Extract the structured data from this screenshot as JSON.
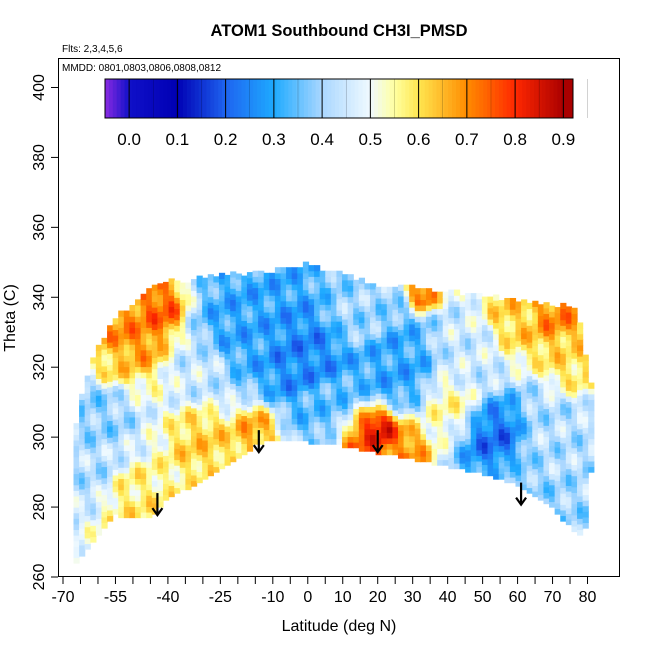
{
  "chart_data": {
    "type": "heatmap",
    "title": "ATOM1 Southbound CH3I_PMSD",
    "flights_note": "Flts: 2,3,4,5,6",
    "dates_note": "MMDD: 0801,0803,0806,0808,0812",
    "xlabel": "Latitude (deg N)",
    "ylabel": "Theta (C)",
    "xlim": [
      -70,
      85
    ],
    "ylim": [
      260,
      405
    ],
    "x_ticks_labeled": [
      -70,
      -55,
      -40,
      -25,
      -10,
      0,
      10,
      20,
      30,
      40,
      50,
      60,
      70,
      80
    ],
    "x_ticks_minor": [
      -65,
      -60,
      -50,
      -45,
      -35,
      -30,
      -20,
      -15,
      -5,
      5,
      15,
      25,
      35,
      45,
      55,
      65,
      75
    ],
    "y_ticks": [
      260,
      280,
      300,
      320,
      340,
      360,
      380,
      400
    ],
    "colorbar": {
      "ticks": [
        "0.0",
        "0.1",
        "0.2",
        "0.3",
        "0.4",
        "0.5",
        "0.6",
        "0.7",
        "0.8",
        "0.9"
      ],
      "range": [
        -0.05,
        0.92
      ],
      "stops": [
        {
          "v": -0.05,
          "c": "#8a2be2"
        },
        {
          "v": 0.0,
          "c": "#1010c8"
        },
        {
          "v": 0.1,
          "c": "#0000b4"
        },
        {
          "v": 0.2,
          "c": "#1e64f0"
        },
        {
          "v": 0.3,
          "c": "#1eaaff"
        },
        {
          "v": 0.4,
          "c": "#aad7ff"
        },
        {
          "v": 0.5,
          "c": "#f0faff"
        },
        {
          "v": 0.55,
          "c": "#ffffa0"
        },
        {
          "v": 0.6,
          "c": "#ffe650"
        },
        {
          "v": 0.7,
          "c": "#ff8c00"
        },
        {
          "v": 0.8,
          "c": "#ff2800"
        },
        {
          "v": 0.9,
          "c": "#aa0000"
        }
      ]
    },
    "coverage_boundary": {
      "top": [
        [
          -67,
          300
        ],
        [
          -64,
          315
        ],
        [
          -60,
          325
        ],
        [
          -55,
          334
        ],
        [
          -50,
          337
        ],
        [
          -46,
          342
        ],
        [
          -43,
          343
        ],
        [
          -40,
          344
        ],
        [
          -35,
          344
        ],
        [
          -30,
          345
        ],
        [
          -25,
          346
        ],
        [
          -20,
          346
        ],
        [
          -10,
          347
        ],
        [
          -5,
          348
        ],
        [
          0,
          349
        ],
        [
          5,
          347
        ],
        [
          10,
          346
        ],
        [
          20,
          343
        ],
        [
          30,
          342
        ],
        [
          40,
          341
        ],
        [
          50,
          340
        ],
        [
          60,
          338
        ],
        [
          70,
          337
        ],
        [
          77,
          337
        ],
        [
          78,
          330
        ],
        [
          80,
          320
        ],
        [
          81,
          315
        ]
      ],
      "bottom": [
        [
          -67,
          264
        ],
        [
          -62,
          270
        ],
        [
          -55,
          278
        ],
        [
          -45,
          277
        ],
        [
          -40,
          283
        ],
        [
          -30,
          288
        ],
        [
          -20,
          294
        ],
        [
          -15,
          298
        ],
        [
          -10,
          300
        ],
        [
          0,
          299
        ],
        [
          10,
          298
        ],
        [
          20,
          296
        ],
        [
          30,
          294
        ],
        [
          40,
          292
        ],
        [
          50,
          290
        ],
        [
          60,
          287
        ],
        [
          70,
          280
        ],
        [
          78,
          272
        ],
        [
          81,
          278
        ],
        [
          81,
          290
        ]
      ]
    },
    "value_patches": [
      {
        "lat": -50,
        "theta": 330,
        "value": 0.7,
        "r": 8
      },
      {
        "lat": -42,
        "theta": 336,
        "value": 0.75,
        "r": 5
      },
      {
        "lat": -56,
        "theta": 320,
        "value": 0.62,
        "r": 6
      },
      {
        "lat": -60,
        "theta": 310,
        "value": 0.38,
        "r": 8
      },
      {
        "lat": -50,
        "theta": 282,
        "value": 0.58,
        "r": 6
      },
      {
        "lat": -62,
        "theta": 290,
        "value": 0.42,
        "r": 6
      },
      {
        "lat": -30,
        "theta": 300,
        "value": 0.62,
        "r": 6
      },
      {
        "lat": -30,
        "theta": 320,
        "value": 0.45,
        "r": 8
      },
      {
        "lat": -20,
        "theta": 330,
        "value": 0.3,
        "r": 10
      },
      {
        "lat": -15,
        "theta": 302,
        "value": 0.66,
        "r": 5
      },
      {
        "lat": 0,
        "theta": 322,
        "value": 0.25,
        "r": 10
      },
      {
        "lat": 5,
        "theta": 310,
        "value": 0.35,
        "r": 8
      },
      {
        "lat": 15,
        "theta": 335,
        "value": 0.4,
        "r": 8
      },
      {
        "lat": 20,
        "theta": 302,
        "value": 0.88,
        "r": 5
      },
      {
        "lat": 17,
        "theta": 299,
        "value": 0.75,
        "r": 6
      },
      {
        "lat": 27,
        "theta": 297,
        "value": 0.7,
        "r": 5
      },
      {
        "lat": 25,
        "theta": 320,
        "value": 0.3,
        "r": 10
      },
      {
        "lat": 33,
        "theta": 341,
        "value": 0.75,
        "r": 3
      },
      {
        "lat": 40,
        "theta": 310,
        "value": 0.55,
        "r": 6
      },
      {
        "lat": 45,
        "theta": 325,
        "value": 0.45,
        "r": 8
      },
      {
        "lat": 60,
        "theta": 335,
        "value": 0.62,
        "r": 7
      },
      {
        "lat": 70,
        "theta": 336,
        "value": 0.7,
        "r": 6
      },
      {
        "lat": 75,
        "theta": 322,
        "value": 0.6,
        "r": 5
      },
      {
        "lat": 68,
        "theta": 300,
        "value": 0.42,
        "r": 8
      },
      {
        "lat": 55,
        "theta": 300,
        "value": 0.22,
        "r": 7
      },
      {
        "lat": 60,
        "theta": 288,
        "value": 0.38,
        "r": 6
      }
    ],
    "arrows": [
      {
        "lat": -43,
        "theta": 284
      },
      {
        "lat": -14,
        "theta": 302
      },
      {
        "lat": 20,
        "theta": 302
      },
      {
        "lat": 61,
        "theta": 287
      }
    ]
  }
}
